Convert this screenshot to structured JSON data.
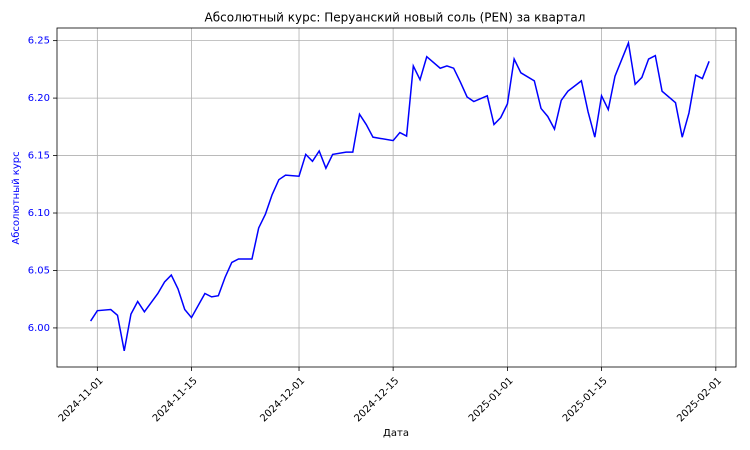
{
  "chart_data": {
    "type": "line",
    "title": "Абсолютный курс: Перуанский новый соль (PEN) за квартал",
    "xlabel": "Дата",
    "ylabel": "Абсолютный курс",
    "color": "#0000ff",
    "grid": true,
    "x": [
      "2024-10-31",
      "2024-11-01",
      "2024-11-03",
      "2024-11-04",
      "2024-11-05",
      "2024-11-06",
      "2024-11-07",
      "2024-11-08",
      "2024-11-10",
      "2024-11-11",
      "2024-11-12",
      "2024-11-13",
      "2024-11-14",
      "2024-11-15",
      "2024-11-17",
      "2024-11-18",
      "2024-11-19",
      "2024-11-20",
      "2024-11-21",
      "2024-11-22",
      "2024-11-24",
      "2024-11-25",
      "2024-11-26",
      "2024-11-27",
      "2024-11-28",
      "2024-11-29",
      "2024-12-01",
      "2024-12-02",
      "2024-12-03",
      "2024-12-04",
      "2024-12-05",
      "2024-12-06",
      "2024-12-08",
      "2024-12-09",
      "2024-12-10",
      "2024-12-11",
      "2024-12-12",
      "2024-12-15",
      "2024-12-16",
      "2024-12-17",
      "2024-12-18",
      "2024-12-19",
      "2024-12-20",
      "2024-12-22",
      "2024-12-23",
      "2024-12-24",
      "2024-12-25",
      "2024-12-26",
      "2024-12-27",
      "2024-12-29",
      "2024-12-30",
      "2024-12-31",
      "2025-01-01",
      "2025-01-02",
      "2025-01-03",
      "2025-01-05",
      "2025-01-06",
      "2025-01-07",
      "2025-01-08",
      "2025-01-09",
      "2025-01-10",
      "2025-01-12",
      "2025-01-13",
      "2025-01-14",
      "2025-01-15",
      "2025-01-16",
      "2025-01-17",
      "2025-01-19",
      "2025-01-20",
      "2025-01-21",
      "2025-01-22",
      "2025-01-23",
      "2025-01-24",
      "2025-01-26",
      "2025-01-27",
      "2025-01-28",
      "2025-01-29",
      "2025-01-30",
      "2025-01-31"
    ],
    "values": [
      6.006,
      6.015,
      6.016,
      6.011,
      5.98,
      6.012,
      6.023,
      6.014,
      6.03,
      6.04,
      6.046,
      6.034,
      6.016,
      6.009,
      6.03,
      6.027,
      6.028,
      6.044,
      6.057,
      6.06,
      6.06,
      6.087,
      6.099,
      6.116,
      6.129,
      6.133,
      6.132,
      6.151,
      6.145,
      6.154,
      6.139,
      6.151,
      6.153,
      6.153,
      6.186,
      6.177,
      6.166,
      6.163,
      6.17,
      6.167,
      6.228,
      6.216,
      6.236,
      6.226,
      6.228,
      6.226,
      6.214,
      6.201,
      6.197,
      6.202,
      6.177,
      6.183,
      6.195,
      6.234,
      6.222,
      6.215,
      6.191,
      6.184,
      6.173,
      6.198,
      6.206,
      6.215,
      6.188,
      6.166,
      6.202,
      6.19,
      6.219,
      6.248,
      6.212,
      6.218,
      6.234,
      6.237,
      6.206,
      6.196,
      6.166,
      6.187,
      6.22,
      6.217,
      6.232
    ],
    "xlim": [
      "2024-10-26",
      "2025-02-04"
    ],
    "xticks": [
      "2024-11-01",
      "2024-11-15",
      "2024-12-01",
      "2024-12-15",
      "2025-01-01",
      "2025-01-15",
      "2025-02-01"
    ],
    "ylim": [
      5.966,
      6.261
    ],
    "yticks": [
      {
        "value": 6,
        "label": "6.00"
      },
      6.05,
      {
        "value": 6.1,
        "label": "6.10"
      },
      6.15,
      {
        "value": 6.2,
        "label": "6.20"
      },
      6.25
    ]
  }
}
